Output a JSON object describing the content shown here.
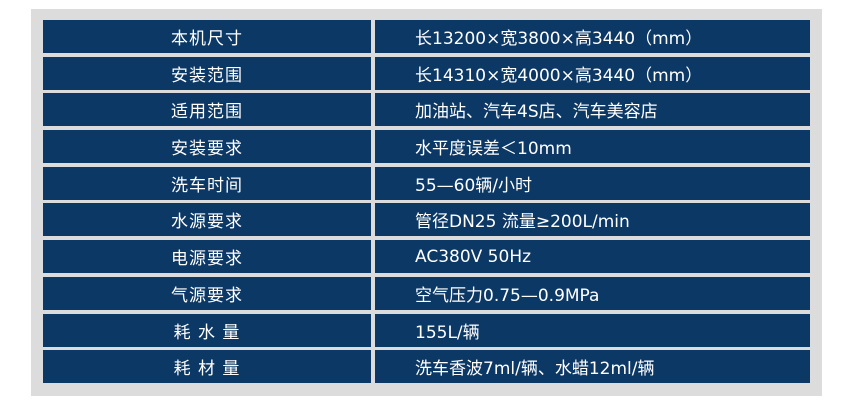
{
  "specs": [
    {
      "label": "本机尺寸",
      "value": "长13200×宽3800×高3440（mm）"
    },
    {
      "label": "安装范围",
      "value": "长14310×宽4000×高3440（mm）"
    },
    {
      "label": "适用范围",
      "value": "加油站、汽车4S店、汽车美容店"
    },
    {
      "label": "安装要求",
      "value": "水平度误差＜10mm"
    },
    {
      "label": "洗车时间",
      "value": "55—60辆/小时"
    },
    {
      "label": "水源要求",
      "value": "管径DN25 流量≥200L/min"
    },
    {
      "label": "电源要求",
      "value": "AC380V 50Hz"
    },
    {
      "label": "气源要求",
      "value": "空气压力0.75—0.9MPa"
    },
    {
      "label": "耗 水 量",
      "value": "155L/辆"
    },
    {
      "label": "耗 材 量",
      "value": "洗车香波7ml/辆、水蜡12ml/辆"
    }
  ]
}
